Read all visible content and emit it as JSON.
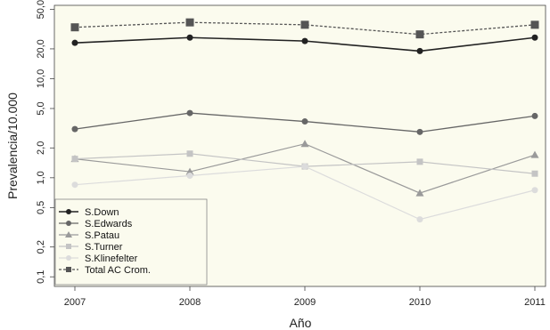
{
  "chart_data": {
    "type": "line",
    "x": [
      2007,
      2008,
      2009,
      2010,
      2011
    ],
    "xlabel": "Año",
    "ylabel": "Prevalencia/10.000",
    "yscale": "log",
    "ylim": [
      0.08,
      55
    ],
    "yticks": [
      {
        "value": 0.1,
        "label": "0,1"
      },
      {
        "value": 0.2,
        "label": "0,2"
      },
      {
        "value": 0.5,
        "label": "0,5"
      },
      {
        "value": 1,
        "label": "1,0"
      },
      {
        "value": 2,
        "label": "2,0"
      },
      {
        "value": 5,
        "label": "5,0"
      },
      {
        "value": 10,
        "label": "10,0"
      },
      {
        "value": 20,
        "label": "20,0"
      },
      {
        "value": 50,
        "label": "50,0"
      }
    ],
    "xticks": [
      "2007",
      "2008",
      "2009",
      "2010",
      "2011"
    ],
    "grid": false,
    "legend_position": "bottom-left",
    "series": [
      {
        "name": "S.Down",
        "values": [
          23,
          26,
          24,
          19,
          26
        ],
        "color": "#222222",
        "marker": "circle",
        "dash": "",
        "width": 1.6
      },
      {
        "name": "S.Edwards",
        "values": [
          3.1,
          4.5,
          3.7,
          2.9,
          4.2
        ],
        "color": "#666666",
        "marker": "circle",
        "dash": "",
        "width": 1.3
      },
      {
        "name": "S.Patau",
        "values": [
          1.55,
          1.15,
          2.2,
          0.7,
          1.7
        ],
        "color": "#9a9a9a",
        "marker": "triangle",
        "dash": "",
        "width": 1.2
      },
      {
        "name": "S.Turner",
        "values": [
          1.55,
          1.75,
          1.3,
          1.45,
          1.1
        ],
        "color": "#c4c4c4",
        "marker": "square",
        "dash": "",
        "width": 1.2
      },
      {
        "name": "S.Klinefelter",
        "values": [
          0.85,
          1.05,
          1.3,
          0.38,
          0.75
        ],
        "color": "#dcdcdc",
        "marker": "circle",
        "dash": "",
        "width": 1.2
      },
      {
        "name": "Total AC Crom.",
        "values": [
          33,
          37,
          35,
          28,
          35
        ],
        "color": "#555555",
        "marker": "square",
        "dash": "3,2",
        "width": 1.3
      }
    ]
  },
  "colors": {
    "plot_background": "#fbfbee",
    "axis": "#444444"
  }
}
